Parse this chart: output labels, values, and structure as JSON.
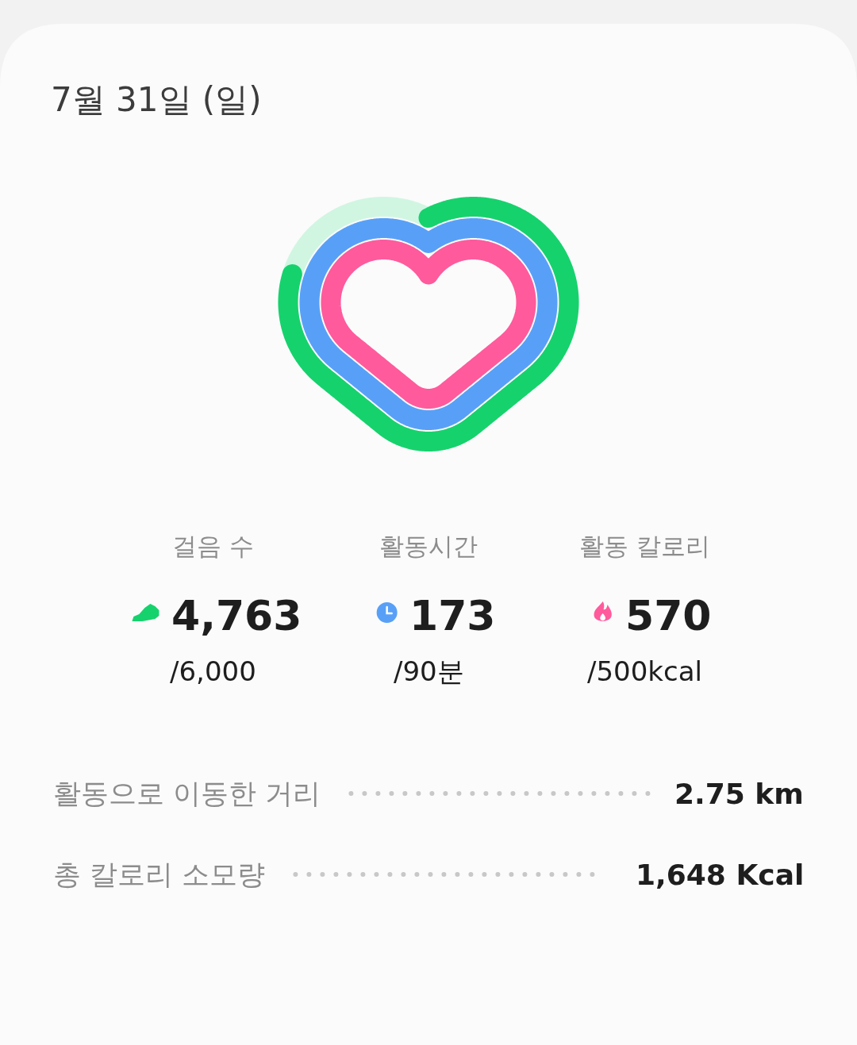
{
  "chart_data": {
    "type": "other",
    "title": "7월 31일 (일)",
    "categories": [
      "걸음 수",
      "활동시간",
      "활동 칼로리"
    ],
    "colors": [
      "#16d26d",
      "#58a0f7",
      "#ff5a9c"
    ],
    "series": [
      {
        "values": [
          4763,
          173,
          570
        ],
        "value_labels": [
          "4,763",
          "173",
          "570"
        ]
      },
      {
        "values": [
          6000,
          90,
          500
        ],
        "value_labels": [
          "/6,000",
          "/90분",
          "/500kcal"
        ]
      }
    ],
    "annotations": [
      "활동으로 이동한 거리",
      "2.75 km",
      "총 칼로리 소모량",
      "1,648 Kcal"
    ]
  }
}
